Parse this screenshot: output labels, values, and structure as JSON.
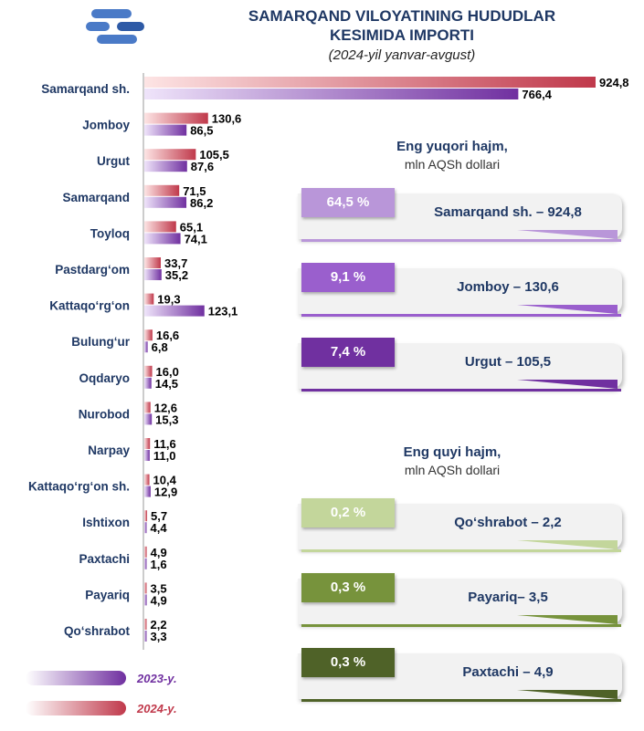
{
  "title_line1": "SAMARQAND VILOYATINING HUDUDLAR",
  "title_line2": "KESIMIDA IMPORTI",
  "subtitle": "(2024-yil yanvar-avgust)",
  "colors": {
    "series_2024": "#c0394b",
    "series_2023": "#7030a0",
    "title": "#1f3864"
  },
  "chart_data": {
    "type": "bar",
    "orientation": "horizontal",
    "categories": [
      "Samarqand sh.",
      "Jomboy",
      "Urgut",
      "Samarqand",
      "Toyloq",
      "Pastdarg‘om",
      "Kattaqo‘rg‘on",
      "Bulung‘ur",
      "Oqdaryo",
      "Nurobod",
      "Narpay",
      "Kattaqo‘rg‘on sh.",
      "Ishtixon",
      "Paxtachi",
      "Payariq",
      "Qo‘shrabot"
    ],
    "series": [
      {
        "name": "2024-y.",
        "values": [
          924.8,
          130.6,
          105.5,
          71.5,
          65.1,
          33.7,
          19.3,
          16.6,
          16.0,
          12.6,
          11.6,
          10.4,
          5.7,
          4.9,
          3.5,
          2.2
        ],
        "labels": [
          "924,8",
          "130,6",
          "105,5",
          "71,5",
          "65,1",
          "33,7",
          "19,3",
          "16,6",
          "16,0",
          "12,6",
          "11,6",
          "10,4",
          "5,7",
          "4,9",
          "3,5",
          "2,2"
        ]
      },
      {
        "name": "2023-y.",
        "values": [
          766.4,
          86.5,
          87.6,
          86.2,
          74.1,
          35.2,
          123.1,
          6.8,
          14.5,
          15.3,
          11.0,
          12.9,
          4.4,
          1.6,
          4.9,
          3.3
        ],
        "labels": [
          "766,4",
          "86,5",
          "87,6",
          "86,2",
          "74,1",
          "35,2",
          "123,1",
          "6,8",
          "14,5",
          "15,3",
          "11,0",
          "12,9",
          "4,4",
          "1,6",
          "4,9",
          "3,3"
        ]
      }
    ],
    "legend": {
      "position": "bottom-left"
    }
  },
  "top_panel": {
    "title": "Eng yuqori hajm,",
    "unit": "mln AQSh dollari",
    "items": [
      {
        "pct": "64,5 %",
        "label": "Samarqand sh. – 924,8",
        "color": "#b996d9"
      },
      {
        "pct": "9,1 %",
        "label": "Jomboy – 130,6",
        "color": "#9a5fcd"
      },
      {
        "pct": "7,4 %",
        "label": "Urgut – 105,5",
        "color": "#7030a0"
      }
    ]
  },
  "bottom_panel": {
    "title": "Eng quyi hajm,",
    "unit": "mln AQSh dollari",
    "items": [
      {
        "pct": "0,2 %",
        "label": "Qo‘shrabot – 2,2",
        "color": "#c3d69b"
      },
      {
        "pct": "0,3 %",
        "label": "Payariq– 3,5",
        "color": "#77933c"
      },
      {
        "pct": "0,3 %",
        "label": "Paxtachi – 4,9",
        "color": "#4f6228"
      }
    ]
  }
}
